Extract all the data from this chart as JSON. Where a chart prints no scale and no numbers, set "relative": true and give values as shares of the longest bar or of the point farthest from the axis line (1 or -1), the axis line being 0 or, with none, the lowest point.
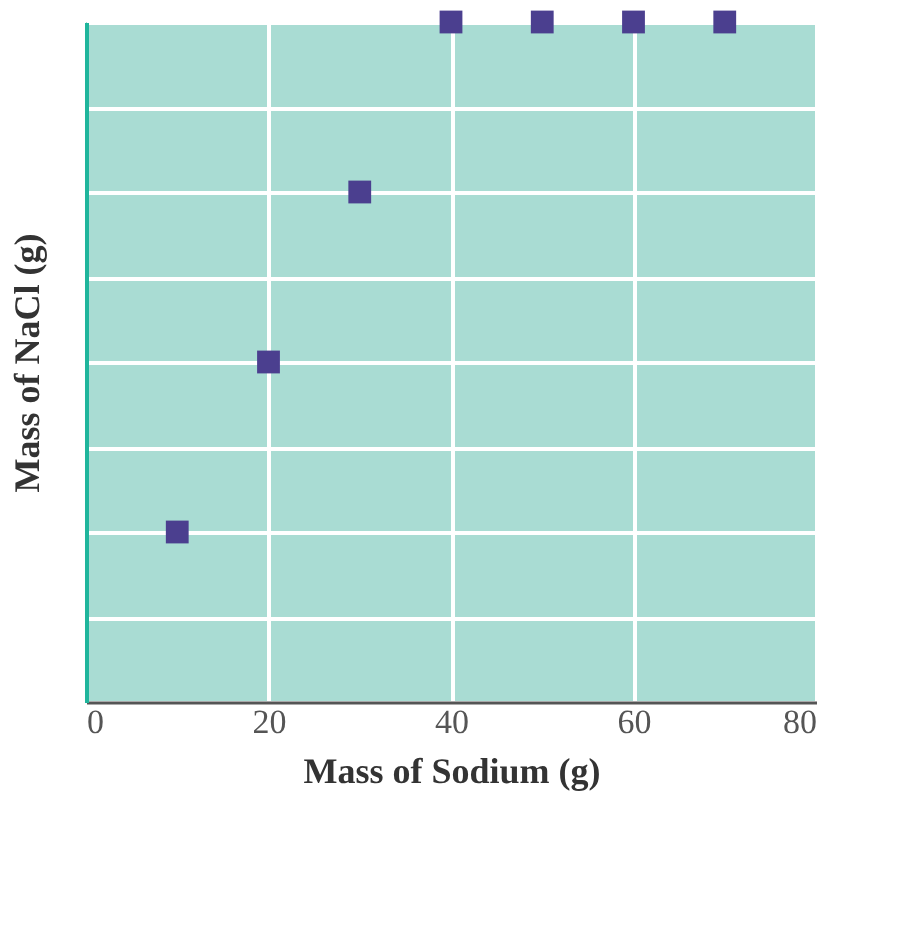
{
  "chart_data": {
    "type": "scatter",
    "xlabel": "Mass of Sodium (g)",
    "ylabel": "Mass of NaCl (g)",
    "x": [
      10,
      20,
      30,
      40,
      50,
      60,
      70
    ],
    "series": [
      {
        "color": "#4b3f8f",
        "values": [
          0.25,
          0.5,
          0.75,
          1,
          1,
          1,
          1
        ]
      }
    ],
    "relative": true,
    "xlim": [
      0,
      80
    ],
    "xticks": [
      0,
      20,
      40,
      60,
      80
    ],
    "grid": true,
    "marker": "square"
  }
}
